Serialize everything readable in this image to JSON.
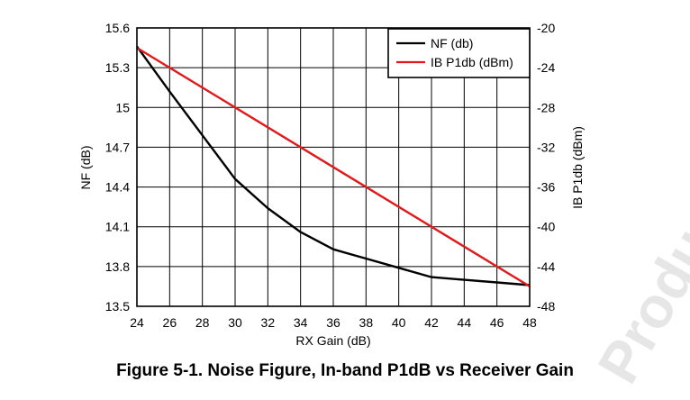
{
  "caption": "Figure 5-1. Noise Figure, In-band P1dB vs Receiver Gain",
  "watermark": {
    "text": "Production Data",
    "color": "#e6e6e6"
  },
  "chart_data": {
    "type": "line",
    "title": "",
    "xlabel": "RX Gain (dB)",
    "ylabel": "NF (dB)",
    "y2label": "IB P1db (dBm)",
    "xlim": [
      24,
      48
    ],
    "ylim": [
      13.5,
      15.6
    ],
    "y2lim": [
      -48,
      -20
    ],
    "x_ticks": [
      "24",
      "26",
      "28",
      "30",
      "32",
      "34",
      "36",
      "38",
      "40",
      "42",
      "44",
      "46",
      "48"
    ],
    "y_ticks": [
      "15.6",
      "15.3",
      "15",
      "14.7",
      "14.4",
      "14.1",
      "13.8",
      "13.5"
    ],
    "y2_ticks": [
      "-20",
      "-24",
      "-28",
      "-32",
      "-36",
      "-40",
      "-44",
      "-48"
    ],
    "grid": true,
    "legend_position": "top-right",
    "series": [
      {
        "name": "NF (db)",
        "axis": "left",
        "color": "#000000",
        "x": [
          24,
          26,
          28,
          30,
          32,
          34,
          36,
          38,
          40,
          42,
          44,
          46,
          48
        ],
        "values": [
          15.46,
          15.12,
          14.79,
          14.46,
          14.24,
          14.06,
          13.93,
          13.86,
          13.79,
          13.72,
          13.7,
          13.68,
          13.66
        ]
      },
      {
        "name": "IB P1db (dBm)",
        "axis": "right",
        "color": "#e0191b",
        "x": [
          24,
          48
        ],
        "values": [
          -22.0,
          -46.0
        ]
      }
    ]
  }
}
